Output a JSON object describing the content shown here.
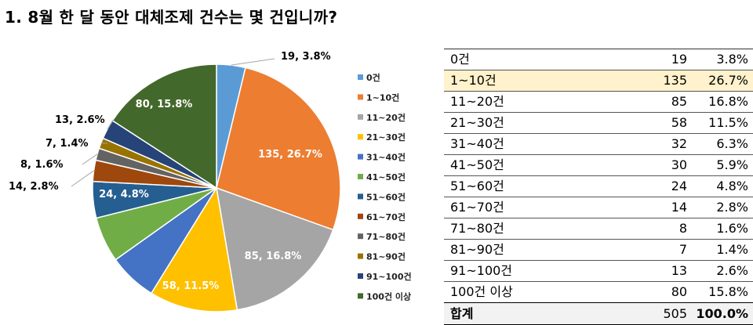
{
  "title": "1. 8월 한 달 동안 대체조제 건수는 몇 건입니까?",
  "chart_data": {
    "type": "pie",
    "categories": [
      "0건",
      "1~10건",
      "11~20건",
      "21~30건",
      "31~40건",
      "41~50건",
      "51~60건",
      "61~70건",
      "71~80건",
      "81~90건",
      "91~100건",
      "100건 이상"
    ],
    "values": [
      19,
      135,
      85,
      58,
      32,
      30,
      24,
      14,
      8,
      7,
      13,
      80
    ],
    "percents": [
      "3.8%",
      "26.7%",
      "16.8%",
      "11.5%",
      "6.3%",
      "5.9%",
      "4.8%",
      "2.8%",
      "1.6%",
      "1.4%",
      "2.6%",
      "15.8%"
    ],
    "data_labels": [
      "19, 3.8%",
      "135, 26.7%",
      "85, 16.8%",
      "58, 11.5%",
      "",
      "",
      "24, 4.8%",
      "14, 2.8%",
      "8, 1.6%",
      "7, 1.4%",
      "13, 2.6%",
      "80, 15.8%"
    ],
    "colors": [
      "#5b9bd5",
      "#ed7d31",
      "#a5a5a5",
      "#ffc000",
      "#4472c4",
      "#70ad47",
      "#255e91",
      "#9e480e",
      "#636363",
      "#997300",
      "#264478",
      "#43682b"
    ],
    "legend_position": "right"
  },
  "table": {
    "rows": [
      {
        "label": "0건",
        "count": "19",
        "pct": "3.8%"
      },
      {
        "label": "1~10건",
        "count": "135",
        "pct": "26.7%",
        "highlight": true
      },
      {
        "label": "11~20건",
        "count": "85",
        "pct": "16.8%"
      },
      {
        "label": "21~30건",
        "count": "58",
        "pct": "11.5%"
      },
      {
        "label": "31~40건",
        "count": "32",
        "pct": "6.3%"
      },
      {
        "label": "41~50건",
        "count": "30",
        "pct": "5.9%"
      },
      {
        "label": "51~60건",
        "count": "24",
        "pct": "4.8%"
      },
      {
        "label": "61~70건",
        "count": "14",
        "pct": "2.8%"
      },
      {
        "label": "71~80건",
        "count": "8",
        "pct": "1.6%"
      },
      {
        "label": "81~90건",
        "count": "7",
        "pct": "1.4%"
      },
      {
        "label": "91~100건",
        "count": "13",
        "pct": "2.6%"
      },
      {
        "label": "100건 이상",
        "count": "80",
        "pct": "15.8%"
      }
    ],
    "total": {
      "label": "합계",
      "count": "505",
      "pct": "100.0%"
    }
  }
}
